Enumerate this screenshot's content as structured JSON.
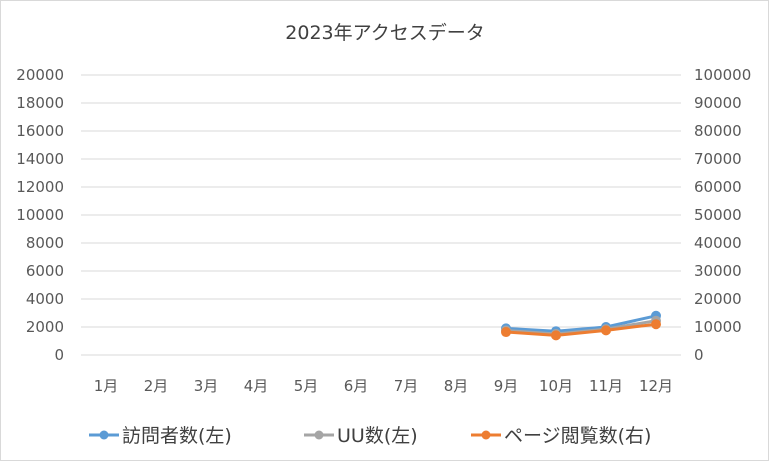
{
  "chart_data": {
    "type": "line",
    "title": "2023年アクセスデータ",
    "categories": [
      "1月",
      "2月",
      "3月",
      "4月",
      "5月",
      "6月",
      "7月",
      "8月",
      "9月",
      "10月",
      "11月",
      "12月"
    ],
    "y_left": {
      "min": 0,
      "max": 20000,
      "step": 2000,
      "ticks": [
        "0",
        "2000",
        "4000",
        "6000",
        "8000",
        "10000",
        "12000",
        "14000",
        "16000",
        "18000",
        "20000"
      ]
    },
    "y_right": {
      "min": 0,
      "max": 100000,
      "step": 10000,
      "ticks": [
        "0",
        "10000",
        "20000",
        "30000",
        "40000",
        "50000",
        "60000",
        "70000",
        "80000",
        "90000",
        "100000"
      ]
    },
    "grid": true,
    "legend_position": "bottom",
    "series": [
      {
        "name": "訪問者数(左)",
        "axis": "left",
        "color": "#5b9bd5",
        "values": [
          null,
          null,
          null,
          null,
          null,
          null,
          null,
          null,
          1900,
          1700,
          2000,
          2800
        ]
      },
      {
        "name": "UU数(左)",
        "axis": "left",
        "color": "#a5a5a5",
        "values": [
          null,
          null,
          null,
          null,
          null,
          null,
          null,
          null,
          1750,
          1500,
          1850,
          2450
        ]
      },
      {
        "name": "ページ閲覧数(右)",
        "axis": "right",
        "color": "#ed7d31",
        "values": [
          null,
          null,
          null,
          null,
          null,
          null,
          null,
          null,
          8200,
          7000,
          8800,
          11000
        ]
      }
    ]
  }
}
